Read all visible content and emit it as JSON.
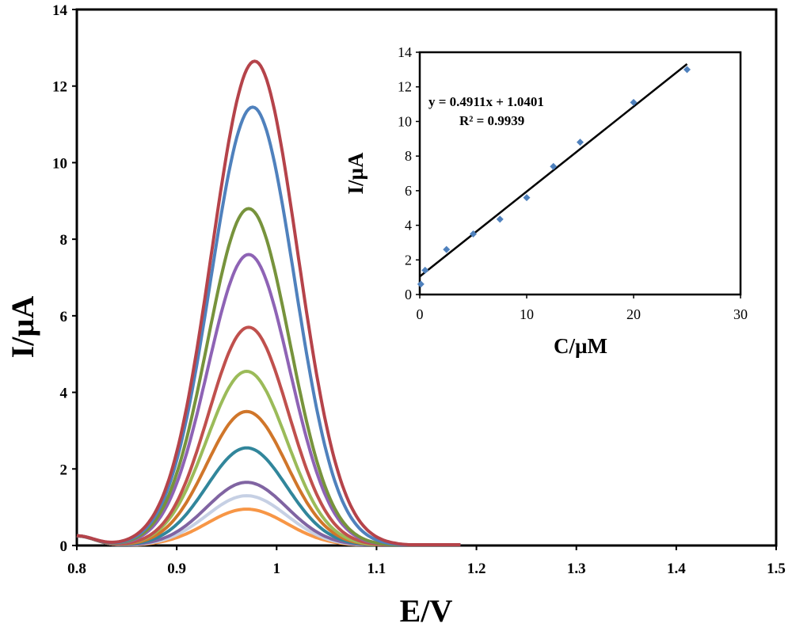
{
  "chart_data": [
    {
      "type": "line",
      "xlabel": "E/V",
      "ylabel": "I/µA",
      "xlim": [
        0.8,
        1.5
      ],
      "ylim": [
        0,
        14
      ],
      "xticks": [
        "0.8",
        "0.9",
        "1",
        "1.1",
        "1.2",
        "1.3",
        "1.4",
        "1.5"
      ],
      "yticks": [
        "0",
        "2",
        "4",
        "6",
        "8",
        "10",
        "12",
        "14"
      ],
      "grid": false,
      "legend": "none",
      "series": [
        {
          "color": "#f79646",
          "peak_x": 0.97,
          "peak_y": 0.95,
          "width": 0.04
        },
        {
          "color": "#c6d0e4",
          "peak_x": 0.97,
          "peak_y": 1.3,
          "width": 0.04
        },
        {
          "color": "#8064a2",
          "peak_x": 0.97,
          "peak_y": 1.65,
          "width": 0.04
        },
        {
          "color": "#31869b",
          "peak_x": 0.97,
          "peak_y": 2.55,
          "width": 0.04
        },
        {
          "color": "#d0762a",
          "peak_x": 0.97,
          "peak_y": 3.5,
          "width": 0.04
        },
        {
          "color": "#9bbb59",
          "peak_x": 0.97,
          "peak_y": 4.55,
          "width": 0.04
        },
        {
          "color": "#c0504d",
          "peak_x": 0.972,
          "peak_y": 5.7,
          "width": 0.04
        },
        {
          "color": "#8e63b5",
          "peak_x": 0.972,
          "peak_y": 7.6,
          "width": 0.041
        },
        {
          "color": "#77933c",
          "peak_x": 0.972,
          "peak_y": 8.8,
          "width": 0.041
        },
        {
          "color": "#4f81bd",
          "peak_x": 0.976,
          "peak_y": 11.45,
          "width": 0.042
        },
        {
          "color": "#b5434a",
          "peak_x": 0.978,
          "peak_y": 12.65,
          "width": 0.043
        }
      ]
    },
    {
      "type": "scatter",
      "xlabel": "C/µM",
      "ylabel": "I/µA",
      "xlim": [
        0,
        30
      ],
      "ylim": [
        0,
        14
      ],
      "xticks": [
        "0",
        "10",
        "20",
        "30"
      ],
      "yticks": [
        "0",
        "2",
        "4",
        "6",
        "8",
        "10",
        "12",
        "14"
      ],
      "grid": false,
      "legend": "none",
      "x": [
        0.1,
        0.5,
        2.5,
        5,
        7.5,
        10,
        12.5,
        15,
        20,
        25
      ],
      "y": [
        0.6,
        1.4,
        2.6,
        3.5,
        4.35,
        5.6,
        7.4,
        8.8,
        11.1,
        13.0
      ],
      "marker_color": "#4f81bd",
      "fit": {
        "slope": 0.4911,
        "intercept": 1.0401,
        "x_range": [
          0,
          25
        ]
      },
      "annotations": [
        "y = 0.4911x + 1.0401",
        "R² = 0.9939"
      ]
    }
  ]
}
